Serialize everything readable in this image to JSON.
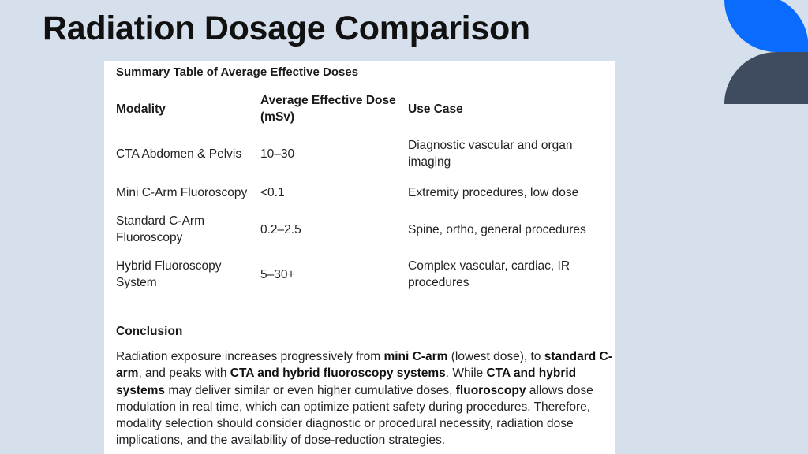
{
  "slide": {
    "title": "Radiation Dosage Comparison"
  },
  "colors": {
    "background": "#d6e0ec",
    "accent_blue": "#0a6cff",
    "accent_slate": "#3f4b5e",
    "card": "#ffffff"
  },
  "summary": {
    "heading": "Summary Table of Average Effective Doses",
    "columns": [
      "Modality",
      "Average Effective Dose (mSv)",
      "Use Case"
    ],
    "rows": [
      {
        "modality": "CTA Abdomen & Pelvis",
        "dose": "10–30",
        "use_case": "Diagnostic vascular and organ imaging"
      },
      {
        "modality": "Mini C-Arm Fluoroscopy",
        "dose": "<0.1",
        "use_case": "Extremity procedures, low dose"
      },
      {
        "modality": "Standard C-Arm Fluoroscopy",
        "dose": "0.2–2.5",
        "use_case": "Spine, ortho, general procedures"
      },
      {
        "modality": "Hybrid Fluoroscopy System",
        "dose": "5–30+",
        "use_case": "Complex vascular, cardiac, IR procedures"
      }
    ]
  },
  "conclusion": {
    "heading": "Conclusion",
    "segments": [
      {
        "text": "Radiation exposure increases progressively from ",
        "bold": false
      },
      {
        "text": "mini C-arm",
        "bold": true
      },
      {
        "text": " (lowest dose), to ",
        "bold": false
      },
      {
        "text": "standard C-arm",
        "bold": true
      },
      {
        "text": ", and peaks with ",
        "bold": false
      },
      {
        "text": "CTA and hybrid fluoroscopy systems",
        "bold": true
      },
      {
        "text": ". While ",
        "bold": false
      },
      {
        "text": "CTA and hybrid systems",
        "bold": true
      },
      {
        "text": " may deliver similar or even higher cumulative doses, ",
        "bold": false
      },
      {
        "text": "fluoroscopy",
        "bold": true
      },
      {
        "text": " allows dose modulation in real time, which can optimize patient safety during procedures. Therefore, modality selection should consider diagnostic or procedural necessity, radiation dose implications, and the availability of dose-reduction strategies.",
        "bold": false
      }
    ]
  }
}
